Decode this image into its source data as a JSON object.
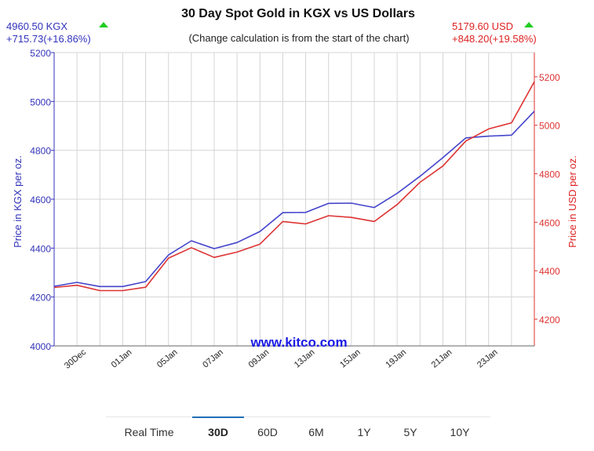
{
  "chart_data": {
    "type": "line",
    "title": "30 Day Spot Gold in KGX vs US Dollars",
    "subtitle": "(Change calculation is from the start of the chart)",
    "watermark": "www.kitco.com",
    "left_quote": {
      "price": "4960.50 KGX",
      "change": "+715.73(+16.86%)",
      "color": "#3333bb"
    },
    "right_quote": {
      "price": "5179.60 USD",
      "change": "+848.20(+19.58%)",
      "color": "#dd2222"
    },
    "up_arrow_color": "#22cc22",
    "ylabel_left": "Price in KGX per oz.",
    "ylabel_right": "Price in USD per oz.",
    "ylim_left": [
      4000,
      5200
    ],
    "ylim_right": [
      4090,
      5300
    ],
    "yticks_left": [
      4000,
      4200,
      4400,
      4600,
      4800,
      5000,
      5200
    ],
    "yticks_right": [
      4200,
      4400,
      4600,
      4800,
      5000,
      5200
    ],
    "x_tick_labels": [
      "30Dec",
      "01Jan",
      "05Jan",
      "07Jan",
      "09Jan",
      "13Jan",
      "15Jan",
      "19Jan",
      "21Jan",
      "23Jan"
    ],
    "x_tick_positions": [
      1,
      3,
      5,
      7,
      9,
      11,
      13,
      15,
      17,
      19
    ],
    "x_count": 22,
    "grid": true,
    "series": [
      {
        "name": "KGX",
        "axis": "left",
        "color": "#4444cc",
        "values": [
          4244,
          4260,
          4243,
          4243,
          4263,
          4372,
          4430,
          4398,
          4423,
          4468,
          4545,
          4546,
          4583,
          4584,
          4566,
          4624,
          4694,
          4770,
          4851,
          4858,
          4862,
          4960
        ]
      },
      {
        "name": "USD",
        "axis": "right",
        "color": "#dd3333",
        "values": [
          4331,
          4340,
          4318,
          4318,
          4332,
          4452,
          4495,
          4455,
          4477,
          4510,
          4603,
          4593,
          4627,
          4620,
          4603,
          4673,
          4765,
          4832,
          4935,
          4985,
          5010,
          5180
        ]
      }
    ]
  },
  "range_tabs": {
    "active": "30D",
    "items": [
      "Real Time",
      "30D",
      "60D",
      "6M",
      "1Y",
      "5Y",
      "10Y"
    ]
  }
}
